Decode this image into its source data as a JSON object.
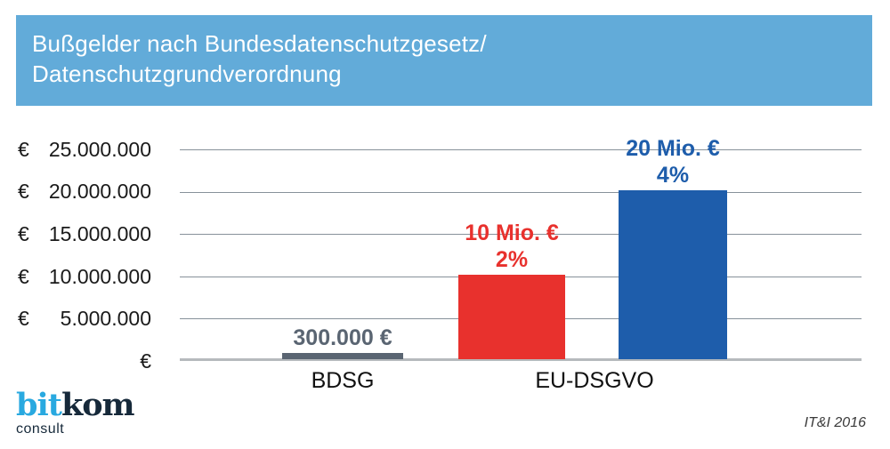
{
  "header": {
    "title_line1": "Bußgelder nach Bundesdatenschutzgesetz/",
    "title_line2": "Datenschutzgrundverordnung",
    "background": "#62abd9",
    "text_color": "#ffffff"
  },
  "chart_data": {
    "type": "bar",
    "title": "Bußgelder nach Bundesdatenschutzgesetz/Datenschutzgrundverordnung",
    "xlabel": "",
    "ylabel": "",
    "ylim": [
      0,
      25000000
    ],
    "grid": true,
    "legend": "none",
    "y_ticks": [
      {
        "symbol": "€",
        "value": "25.000.000"
      },
      {
        "symbol": "€",
        "value": "20.000.000"
      },
      {
        "symbol": "€",
        "value": "15.000.000"
      },
      {
        "symbol": "€",
        "value": "10.000.000"
      },
      {
        "symbol": "€",
        "value": "5.000.000"
      },
      {
        "symbol": "",
        "value": "€"
      }
    ],
    "categories": [
      "BDSG",
      "EU-DSGVO"
    ],
    "bars": [
      {
        "category": "BDSG",
        "value": 300000,
        "label": "300.000 €",
        "percent": "",
        "color": "#5a6572",
        "label_color": "#5a6572"
      },
      {
        "category": "EU-DSGVO",
        "value": 10000000,
        "label": "10 Mio. €",
        "percent": "2%",
        "color": "#e8312d",
        "label_color": "#e8312d"
      },
      {
        "category": "EU-DSGVO",
        "value": 20000000,
        "label": "20 Mio. €",
        "percent": "4%",
        "color": "#1e5dab",
        "label_color": "#1e5dab"
      }
    ]
  },
  "footer": {
    "logo_part1": "bit",
    "logo_part2": "kom",
    "logo_part1_color": "#29a9e0",
    "logo_part2_color": "#16293a",
    "logo_sub": "consult",
    "source": "IT&I 2016"
  }
}
